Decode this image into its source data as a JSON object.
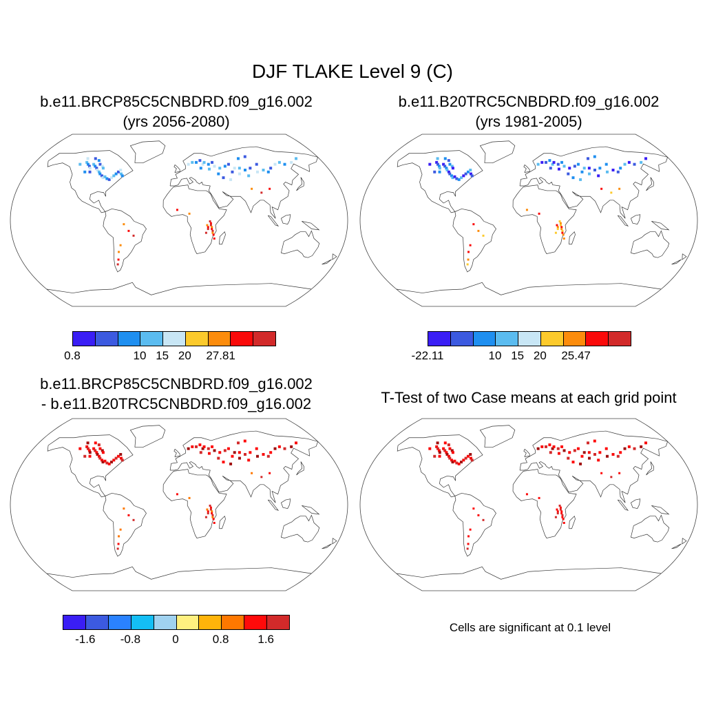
{
  "title": "DJF TLAKE Level 9 (C)",
  "panels": [
    {
      "line1": "b.e11.BRCP85C5CNBDRD.f09_g16.002",
      "line2": "(yrs 2056-2080)"
    },
    {
      "line1": "b.e11.B20TRC5CNBDRD.f09_g16.002",
      "line2": "(yrs 1981-2005)"
    },
    {
      "line1": "b.e11.BRCP85C5CNBDRD.f09_g16.002",
      "line2": "- b.e11.B20TRC5CNBDRD.f09_g16.002"
    },
    {
      "line1": "T-Test of two Case means at each grid point",
      "line2": ""
    }
  ],
  "colorbars": [
    {
      "colors": [
        "#3a1ef5",
        "#3c5ae0",
        "#1f8ff0",
        "#5bbcf0",
        "#c8e6f5",
        "#fcca2c",
        "#fc8c0c",
        "#fa0a0a",
        "#d22a2a"
      ],
      "labels": [
        "0.8",
        "10",
        "15",
        "20",
        "27.81"
      ],
      "label_pos": [
        0,
        3,
        4,
        5,
        6.6
      ]
    },
    {
      "colors": [
        "#3a1ef5",
        "#3c5ae0",
        "#1f8ff0",
        "#5bbcf0",
        "#c8e6f5",
        "#fcca2c",
        "#fc8c0c",
        "#fa0a0a",
        "#d22a2a"
      ],
      "labels": [
        "-22.11",
        "10",
        "15",
        "20",
        "25.47"
      ],
      "label_pos": [
        0,
        3,
        4,
        5,
        6.6
      ]
    },
    {
      "colors": [
        "#3a1ef5",
        "#3c5ae0",
        "#2a82ff",
        "#14bef5",
        "#a0d2f0",
        "#fff080",
        "#ffb40a",
        "#ff7800",
        "#ff0a0a",
        "#d22a2a"
      ],
      "labels": [
        "-1.6",
        "-0.8",
        "0",
        "0.8",
        "1.6"
      ],
      "label_pos": [
        1,
        3,
        5,
        7,
        9
      ]
    }
  ],
  "note": "Cells are significant at 0.1 level"
}
